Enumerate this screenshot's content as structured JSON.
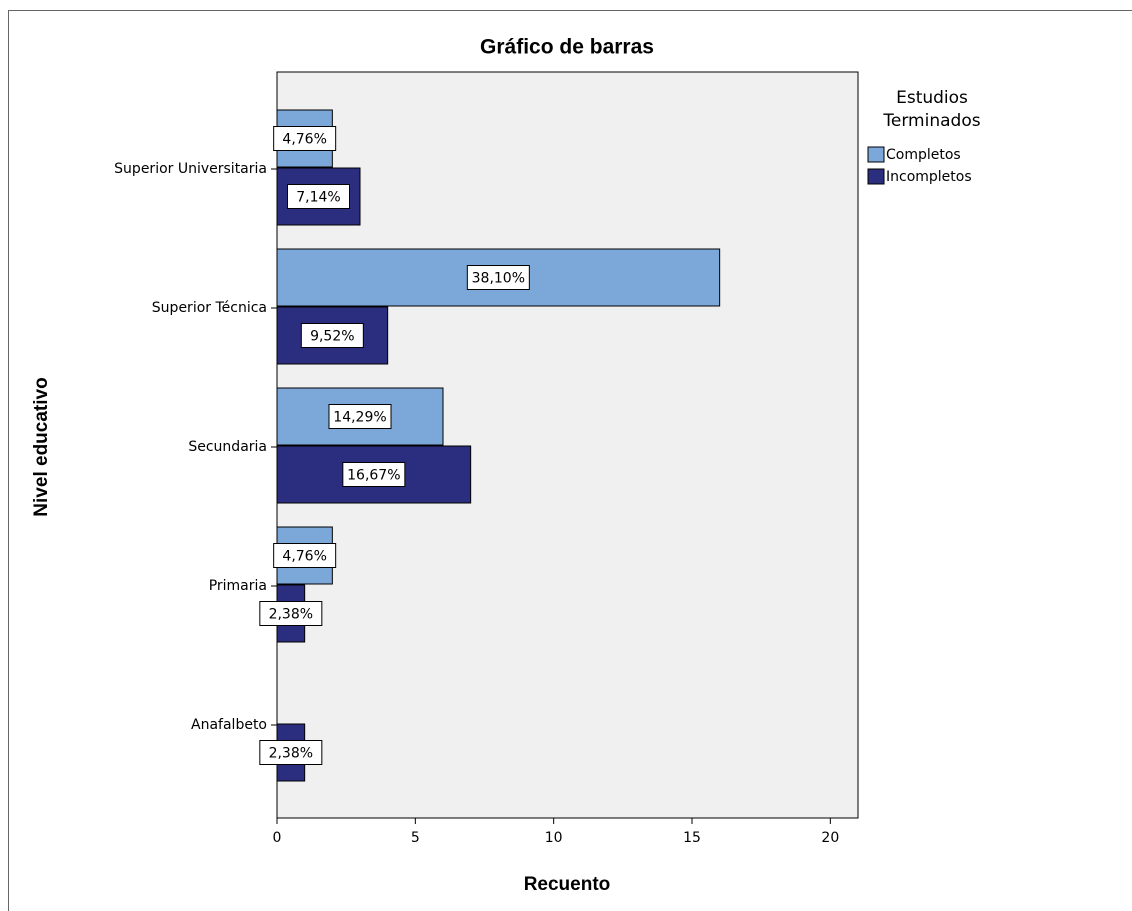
{
  "chart_data": {
    "type": "hbar",
    "title": "Gráfico de barras",
    "x_label": "Recuento",
    "y_label": "Nivel educativo",
    "legend_title": [
      "Estudios",
      "Terminados"
    ],
    "categories": [
      "Superior Universitaria",
      "Superior Técnica",
      "Secundaria",
      "Primaria",
      "Anafalbeto"
    ],
    "series": [
      {
        "name": "Incompletos",
        "color": "#2b2e7e",
        "values": [
          3,
          4,
          7,
          1,
          1
        ],
        "percent_labels": [
          "7,14%",
          "9,52%",
          "16,67%",
          "2,38%",
          "2,38%"
        ]
      },
      {
        "name": "Completos",
        "color": "#7ba8d8",
        "values": [
          2,
          16,
          6,
          2,
          0
        ],
        "percent_labels": [
          "4,76%",
          "38,10%",
          "14,29%",
          "4,76%",
          null
        ]
      }
    ],
    "xlim": [
      0,
      21
    ],
    "xticks": [
      0,
      5,
      10,
      15,
      20
    ],
    "legend": "right"
  }
}
